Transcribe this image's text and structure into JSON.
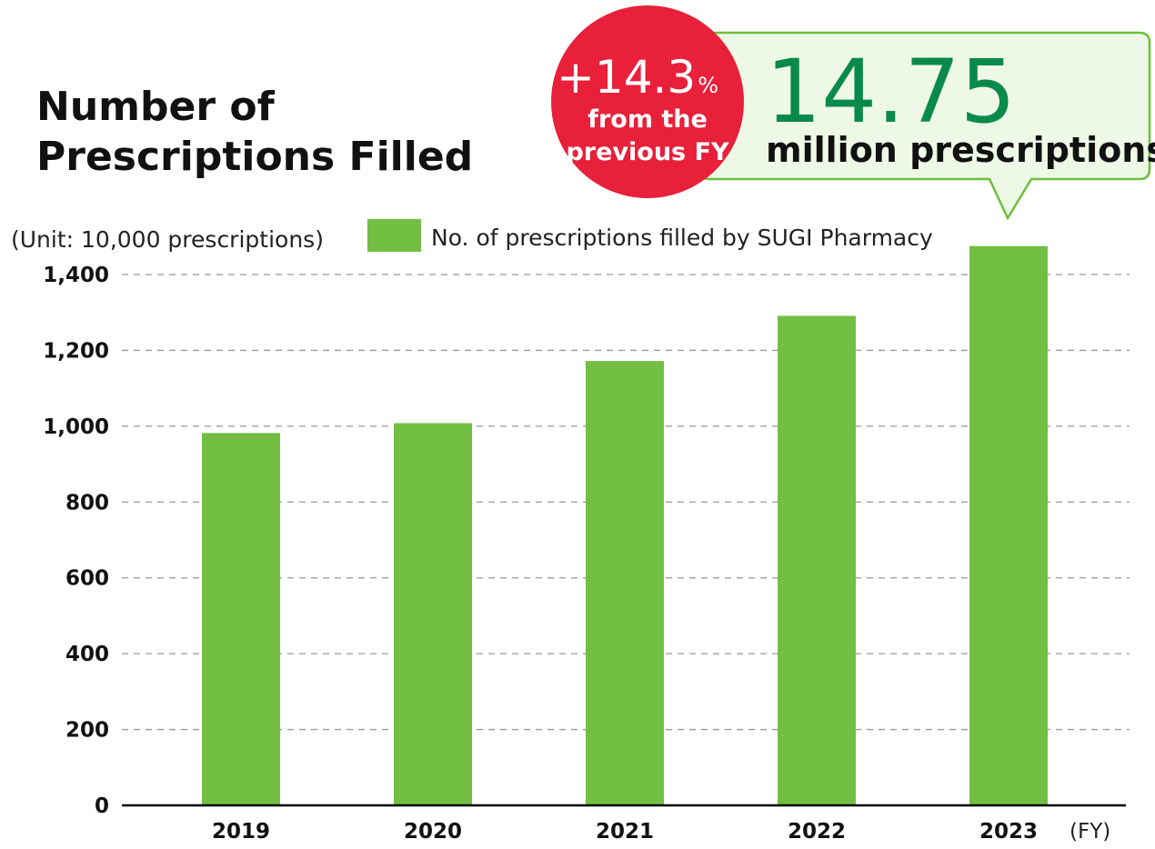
{
  "chart_data": {
    "type": "bar",
    "title_line1": "Number of",
    "title_line2": "Prescriptions Filled",
    "unit_label": "(Unit: 10,000 prescriptions)",
    "x_unit_label": "(FY)",
    "categories": [
      "2019",
      "2020",
      "2021",
      "2022",
      "2023"
    ],
    "series": [
      {
        "name": "No. of prescriptions filled by SUGI Pharmacy",
        "values": [
          982,
          1008,
          1172,
          1291,
          1475
        ]
      }
    ],
    "ylim": [
      0,
      1400
    ],
    "yticks": [
      0,
      200,
      400,
      600,
      800,
      1000,
      1200,
      1400
    ],
    "ytick_labels": [
      "0",
      "200",
      "400",
      "600",
      "800",
      "1,000",
      "1,200",
      "1,400"
    ],
    "grid": true,
    "legend_position": "top",
    "colors": {
      "bar": "#72bf44",
      "badge": "#e8203a",
      "highlight_number": "#0a8a4a",
      "callout_border": "#6cbf3e",
      "callout_fill": "#eef8e6"
    },
    "annotations": {
      "badge_value": "+14.3",
      "badge_percent": "%",
      "badge_line1": "from the",
      "badge_line2": "previous FY",
      "callout_value": "14.75",
      "callout_unit": "million prescriptions"
    }
  }
}
